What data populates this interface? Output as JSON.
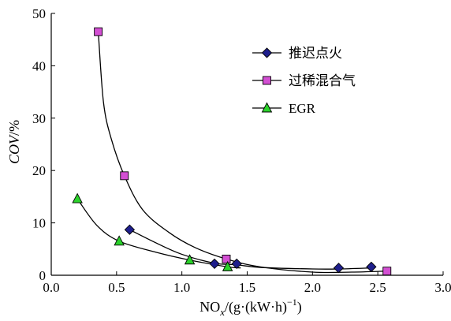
{
  "chart_data": {
    "type": "scatter",
    "x_axis": {
      "label_parts": {
        "base": "NO",
        "sub": "x",
        "mid": "/(g·(kW·h)",
        "sup": "−1",
        "end": ")"
      },
      "range": [
        0.0,
        3.0
      ],
      "ticks": [
        0.0,
        0.5,
        1.0,
        1.5,
        2.0,
        2.5,
        3.0
      ],
      "tick_labels": [
        "0.0",
        "0.5",
        "1.0",
        "1.5",
        "2.0",
        "2.5",
        "3.0"
      ]
    },
    "y_axis": {
      "label_parts": {
        "italic": "COV",
        "rest": "/%"
      },
      "range": [
        0,
        50
      ],
      "ticks": [
        0,
        10,
        20,
        30,
        40,
        50
      ],
      "tick_labels": [
        "0",
        "10",
        "20",
        "30",
        "40",
        "50"
      ]
    },
    "grid": false,
    "legend_position": "top-right",
    "series": [
      {
        "name": "推迟点火",
        "marker": "diamond",
        "color": "#1e1e8c",
        "points": [
          [
            0.6,
            8.7
          ],
          [
            1.25,
            2.2
          ],
          [
            1.42,
            2.2
          ],
          [
            2.2,
            1.4
          ],
          [
            2.45,
            1.6
          ]
        ],
        "curve": [
          [
            0.6,
            8.7
          ],
          [
            0.8,
            6.2
          ],
          [
            1.0,
            4.0
          ],
          [
            1.25,
            2.3
          ],
          [
            1.42,
            2.0
          ],
          [
            1.6,
            1.5
          ],
          [
            2.0,
            1.2
          ],
          [
            2.2,
            1.2
          ],
          [
            2.45,
            1.4
          ]
        ]
      },
      {
        "name": "过稀混合气",
        "marker": "square",
        "color": "#d34fd3",
        "points": [
          [
            0.36,
            46.5
          ],
          [
            0.56,
            19.0
          ],
          [
            1.34,
            3.1
          ],
          [
            2.57,
            0.8
          ]
        ],
        "curve": [
          [
            0.36,
            46.5
          ],
          [
            0.4,
            33.0
          ],
          [
            0.46,
            26.0
          ],
          [
            0.56,
            19.0
          ],
          [
            0.7,
            12.5
          ],
          [
            0.9,
            8.2
          ],
          [
            1.1,
            5.3
          ],
          [
            1.34,
            3.1
          ],
          [
            1.6,
            1.6
          ],
          [
            2.0,
            0.6
          ],
          [
            2.3,
            0.6
          ],
          [
            2.57,
            0.8
          ]
        ]
      },
      {
        "name": "EGR",
        "marker": "triangle",
        "color": "#2bd22b",
        "points": [
          [
            0.2,
            14.6
          ],
          [
            0.52,
            6.5
          ],
          [
            1.06,
            2.9
          ],
          [
            1.35,
            1.6
          ]
        ],
        "curve": [
          [
            0.2,
            14.6
          ],
          [
            0.35,
            9.5
          ],
          [
            0.52,
            6.5
          ],
          [
            0.8,
            4.4
          ],
          [
            1.06,
            2.9
          ],
          [
            1.35,
            1.6
          ],
          [
            1.45,
            1.4
          ]
        ]
      }
    ]
  }
}
